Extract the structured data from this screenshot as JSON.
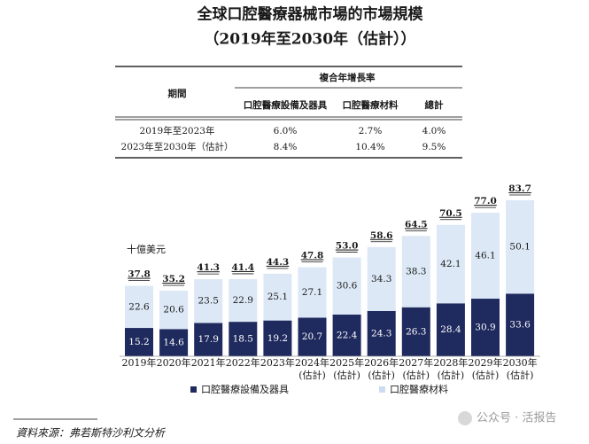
{
  "title": "全球口腔醫療器械市場的市場規模",
  "subtitle": "（2019年至2030年（估計））",
  "table": {
    "period_header": "期間",
    "group_header": "複合年增長率",
    "columns": [
      "口腔醫療設備及器具",
      "口腔醫療材料",
      "總計"
    ],
    "rows": [
      [
        "2019年至2023年",
        "6.0%",
        "2.7%",
        "4.0%"
      ],
      [
        "2023年至2030年（估計）",
        "8.4%",
        "10.4%",
        "9.5%"
      ]
    ]
  },
  "chart_data": {
    "type": "stacked_bar",
    "unit_label": "十億美元",
    "categories": [
      "2019年",
      "2020年",
      "2021年",
      "2022年",
      "2023年",
      "2024年\n(估計)",
      "2025年\n(估計)",
      "2026年\n(估計)",
      "2027年\n(估計)",
      "2028年\n(估計)",
      "2029年\n(估計)",
      "2030年\n(估計)"
    ],
    "series": [
      {
        "name": "口腔醫療設備及器具",
        "color": "#1f2a5e",
        "label_color": "#ffffff",
        "values": [
          15.2,
          14.6,
          17.9,
          18.5,
          19.2,
          20.7,
          22.4,
          24.3,
          26.3,
          28.4,
          30.9,
          33.6
        ]
      },
      {
        "name": "口腔醫療材料",
        "color": "#dce8f6",
        "label_color": "#1a1a1a",
        "values": [
          22.6,
          20.6,
          23.5,
          22.9,
          25.1,
          27.1,
          30.6,
          34.3,
          38.3,
          42.1,
          46.1,
          50.1
        ]
      }
    ],
    "totals": [
      37.8,
      35.2,
      41.3,
      41.4,
      44.3,
      47.8,
      53.0,
      58.6,
      64.5,
      70.5,
      77.0,
      83.7
    ],
    "total_labels": [
      "37.8",
      "35.2",
      "41.3",
      "41.4",
      "44.3",
      "47.8",
      "53.0",
      "58.6",
      "64.5",
      "70.5",
      "77.0",
      "83.7"
    ]
  },
  "source": "資料來源：弗若斯特沙利文分析",
  "watermark": "公众号 · 活报告"
}
